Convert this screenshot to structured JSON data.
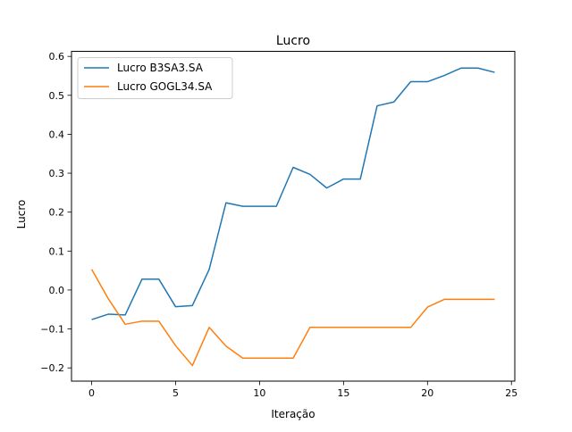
{
  "chart_data": {
    "type": "line",
    "title": "Lucro",
    "xlabel": "Iteração",
    "ylabel": "Lucro",
    "xlim": [
      -1.2,
      25.2
    ],
    "ylim": [
      -0.234,
      0.613
    ],
    "xticks": [
      0,
      5,
      10,
      15,
      20,
      25
    ],
    "xtick_labels": [
      "0",
      "5",
      "10",
      "15",
      "20",
      "25"
    ],
    "yticks": [
      -0.2,
      -0.1,
      0.0,
      0.1,
      0.2,
      0.3,
      0.4,
      0.5,
      0.6
    ],
    "ytick_labels": [
      "−0.2",
      "−0.1",
      "0.0",
      "0.1",
      "0.2",
      "0.3",
      "0.4",
      "0.5",
      "0.6"
    ],
    "grid": false,
    "legend_position": "top-left",
    "x": [
      0,
      1,
      2,
      3,
      4,
      5,
      6,
      7,
      8,
      9,
      10,
      11,
      12,
      13,
      14,
      15,
      16,
      17,
      18,
      19,
      20,
      21,
      22,
      23,
      24
    ],
    "series": [
      {
        "name": "Lucro B3SA3.SA",
        "color": "#1f77b4",
        "values": [
          -0.076,
          -0.062,
          -0.064,
          0.028,
          0.028,
          -0.043,
          -0.04,
          0.053,
          0.224,
          0.215,
          0.215,
          0.215,
          0.315,
          0.297,
          0.262,
          0.285,
          0.285,
          0.473,
          0.483,
          0.535,
          0.535,
          0.551,
          0.57,
          0.57,
          0.559
        ]
      },
      {
        "name": "Lucro GOGL34.SA",
        "color": "#ff7f0e",
        "values": [
          0.053,
          -0.023,
          -0.088,
          -0.08,
          -0.08,
          -0.143,
          -0.194,
          -0.096,
          -0.144,
          -0.175,
          -0.175,
          -0.175,
          -0.175,
          -0.096,
          -0.096,
          -0.096,
          -0.096,
          -0.096,
          -0.096,
          -0.096,
          -0.044,
          -0.024,
          -0.024,
          -0.024,
          -0.024
        ]
      }
    ]
  }
}
